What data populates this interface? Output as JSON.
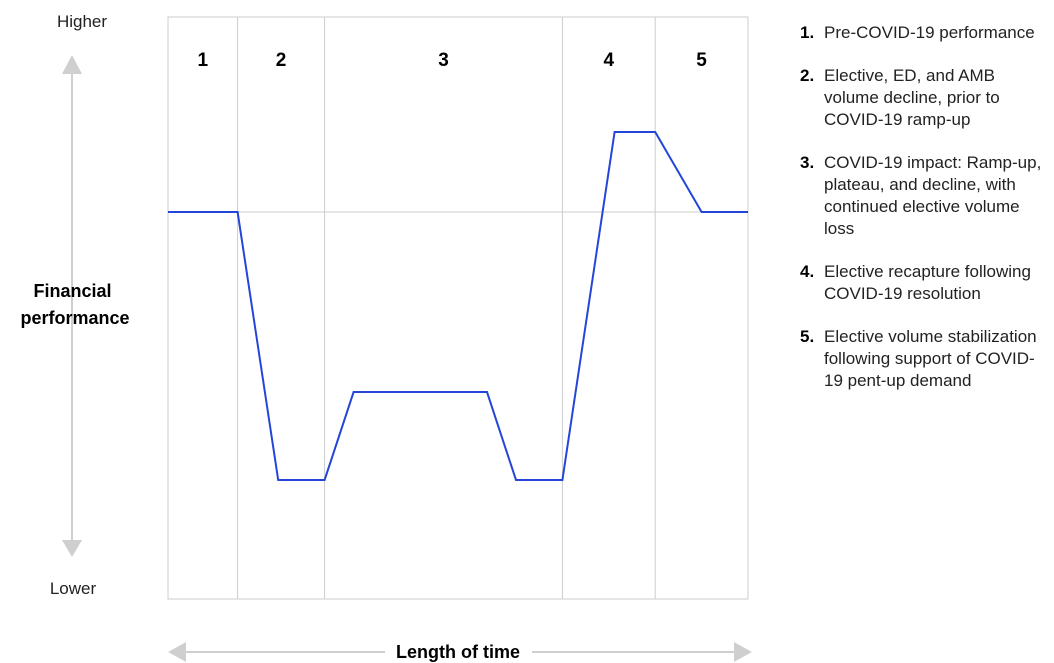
{
  "chart_data": {
    "type": "line",
    "y_axis": {
      "label": "Financial performance",
      "top_label": "Higher",
      "bottom_label": "Lower",
      "ticks": false
    },
    "x_axis": {
      "label": "Length of time",
      "ticks": false
    },
    "phases": [
      {
        "number": "1",
        "description": "Pre-COVID-19 performance"
      },
      {
        "number": "2",
        "description": "Elective, ED, and AMB volume decline, prior to COVID-19 ramp-up"
      },
      {
        "number": "3",
        "description": "COVID-19 impact: Ramp-up, plateau, and decline, with continued elective volume loss"
      },
      {
        "number": "4",
        "description": "Elective recapture following COVID-19 resolution"
      },
      {
        "number": "5",
        "description": "Elective volume stabilization following support of COVID-19 pent-up demand"
      }
    ],
    "phase_boundaries": [
      0,
      12,
      27,
      68,
      84,
      100
    ],
    "baseline_level": 0,
    "y_range": [
      -100,
      100
    ],
    "series": [
      {
        "x": [
          0,
          12,
          19,
          27,
          32,
          55,
          60,
          68,
          77,
          84,
          92,
          100
        ],
        "y": [
          0,
          0,
          -67,
          -67,
          -45,
          -45,
          -67,
          -67,
          20,
          20,
          0,
          0
        ]
      }
    ],
    "grid": "vertical phase dividers and baseline",
    "legend_position": "right",
    "colors": {
      "line": "#2346d8",
      "grid": "#cccccc",
      "arrow": "#cfcfcf",
      "text": "#111111"
    }
  }
}
